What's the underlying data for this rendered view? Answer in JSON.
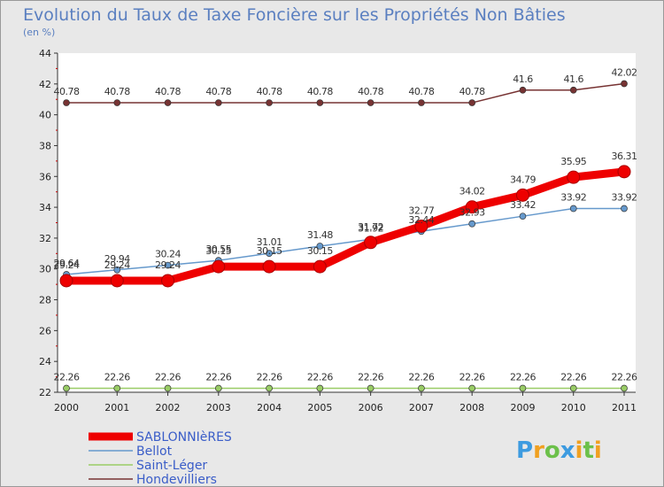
{
  "chart_data": {
    "type": "line",
    "title": "Evolution du Taux de Taxe Foncière sur les Propriétés Non Bâties",
    "subtitle": "(en %)",
    "xlabel": "",
    "ylabel": "",
    "x": [
      "2000",
      "2001",
      "2002",
      "2003",
      "2004",
      "2005",
      "2006",
      "2007",
      "2008",
      "2009",
      "2010",
      "2011"
    ],
    "ylim": [
      22,
      44
    ],
    "yticks": [
      "22",
      "24",
      "26",
      "28",
      "30",
      "32",
      "34",
      "36",
      "38",
      "40",
      "42",
      "44"
    ],
    "grid": false,
    "legend_position": "bottom-left",
    "series": [
      {
        "name": "SABLONNIèRES",
        "color": "#ee0000",
        "values": [
          29.24,
          29.24,
          29.24,
          30.15,
          30.15,
          30.15,
          31.72,
          32.77,
          34.02,
          34.79,
          35.95,
          36.31
        ],
        "labels": [
          "29.24",
          "29.24",
          "29.24",
          "30.15",
          "30.15",
          "30.15",
          "31.72",
          "32.77",
          "34.02",
          "34.79",
          "35.95",
          "36.31"
        ]
      },
      {
        "name": "Bellot",
        "color": "#6699cc",
        "values": [
          29.64,
          29.94,
          30.24,
          30.55,
          31.01,
          31.48,
          31.92,
          32.44,
          32.93,
          33.42,
          33.92,
          33.92
        ],
        "labels": [
          "29.64",
          "29.94",
          "30.24",
          "30.55",
          "31.01",
          "31.48",
          "31.92",
          "32.44",
          "32.93",
          "33.42",
          "33.92",
          "33.92"
        ]
      },
      {
        "name": "Saint-Léger",
        "color": "#99cc66",
        "values": [
          22.26,
          22.26,
          22.26,
          22.26,
          22.26,
          22.26,
          22.26,
          22.26,
          22.26,
          22.26,
          22.26,
          22.26
        ],
        "labels": [
          "22.26",
          "22.26",
          "22.26",
          "22.26",
          "22.26",
          "22.26",
          "22.26",
          "22.26",
          "22.26",
          "22.26",
          "22.26",
          "22.26"
        ]
      },
      {
        "name": "Hondevilliers",
        "color": "#773333",
        "values": [
          40.78,
          40.78,
          40.78,
          40.78,
          40.78,
          40.78,
          40.78,
          40.78,
          40.78,
          41.6,
          41.6,
          42.02
        ],
        "labels": [
          "40.78",
          "40.78",
          "40.78",
          "40.78",
          "40.78",
          "40.78",
          "40.78",
          "40.78",
          "40.78",
          "41.6",
          "41.6",
          "42.02"
        ]
      }
    ]
  },
  "brand": {
    "letters": [
      "P",
      "r",
      "o",
      "x",
      "i",
      "t",
      "i"
    ],
    "colors": [
      "#3d9be0",
      "#f0a020",
      "#6cc04a",
      "#3d9be0",
      "#f0a020",
      "#6cc04a",
      "#f0a020"
    ]
  }
}
